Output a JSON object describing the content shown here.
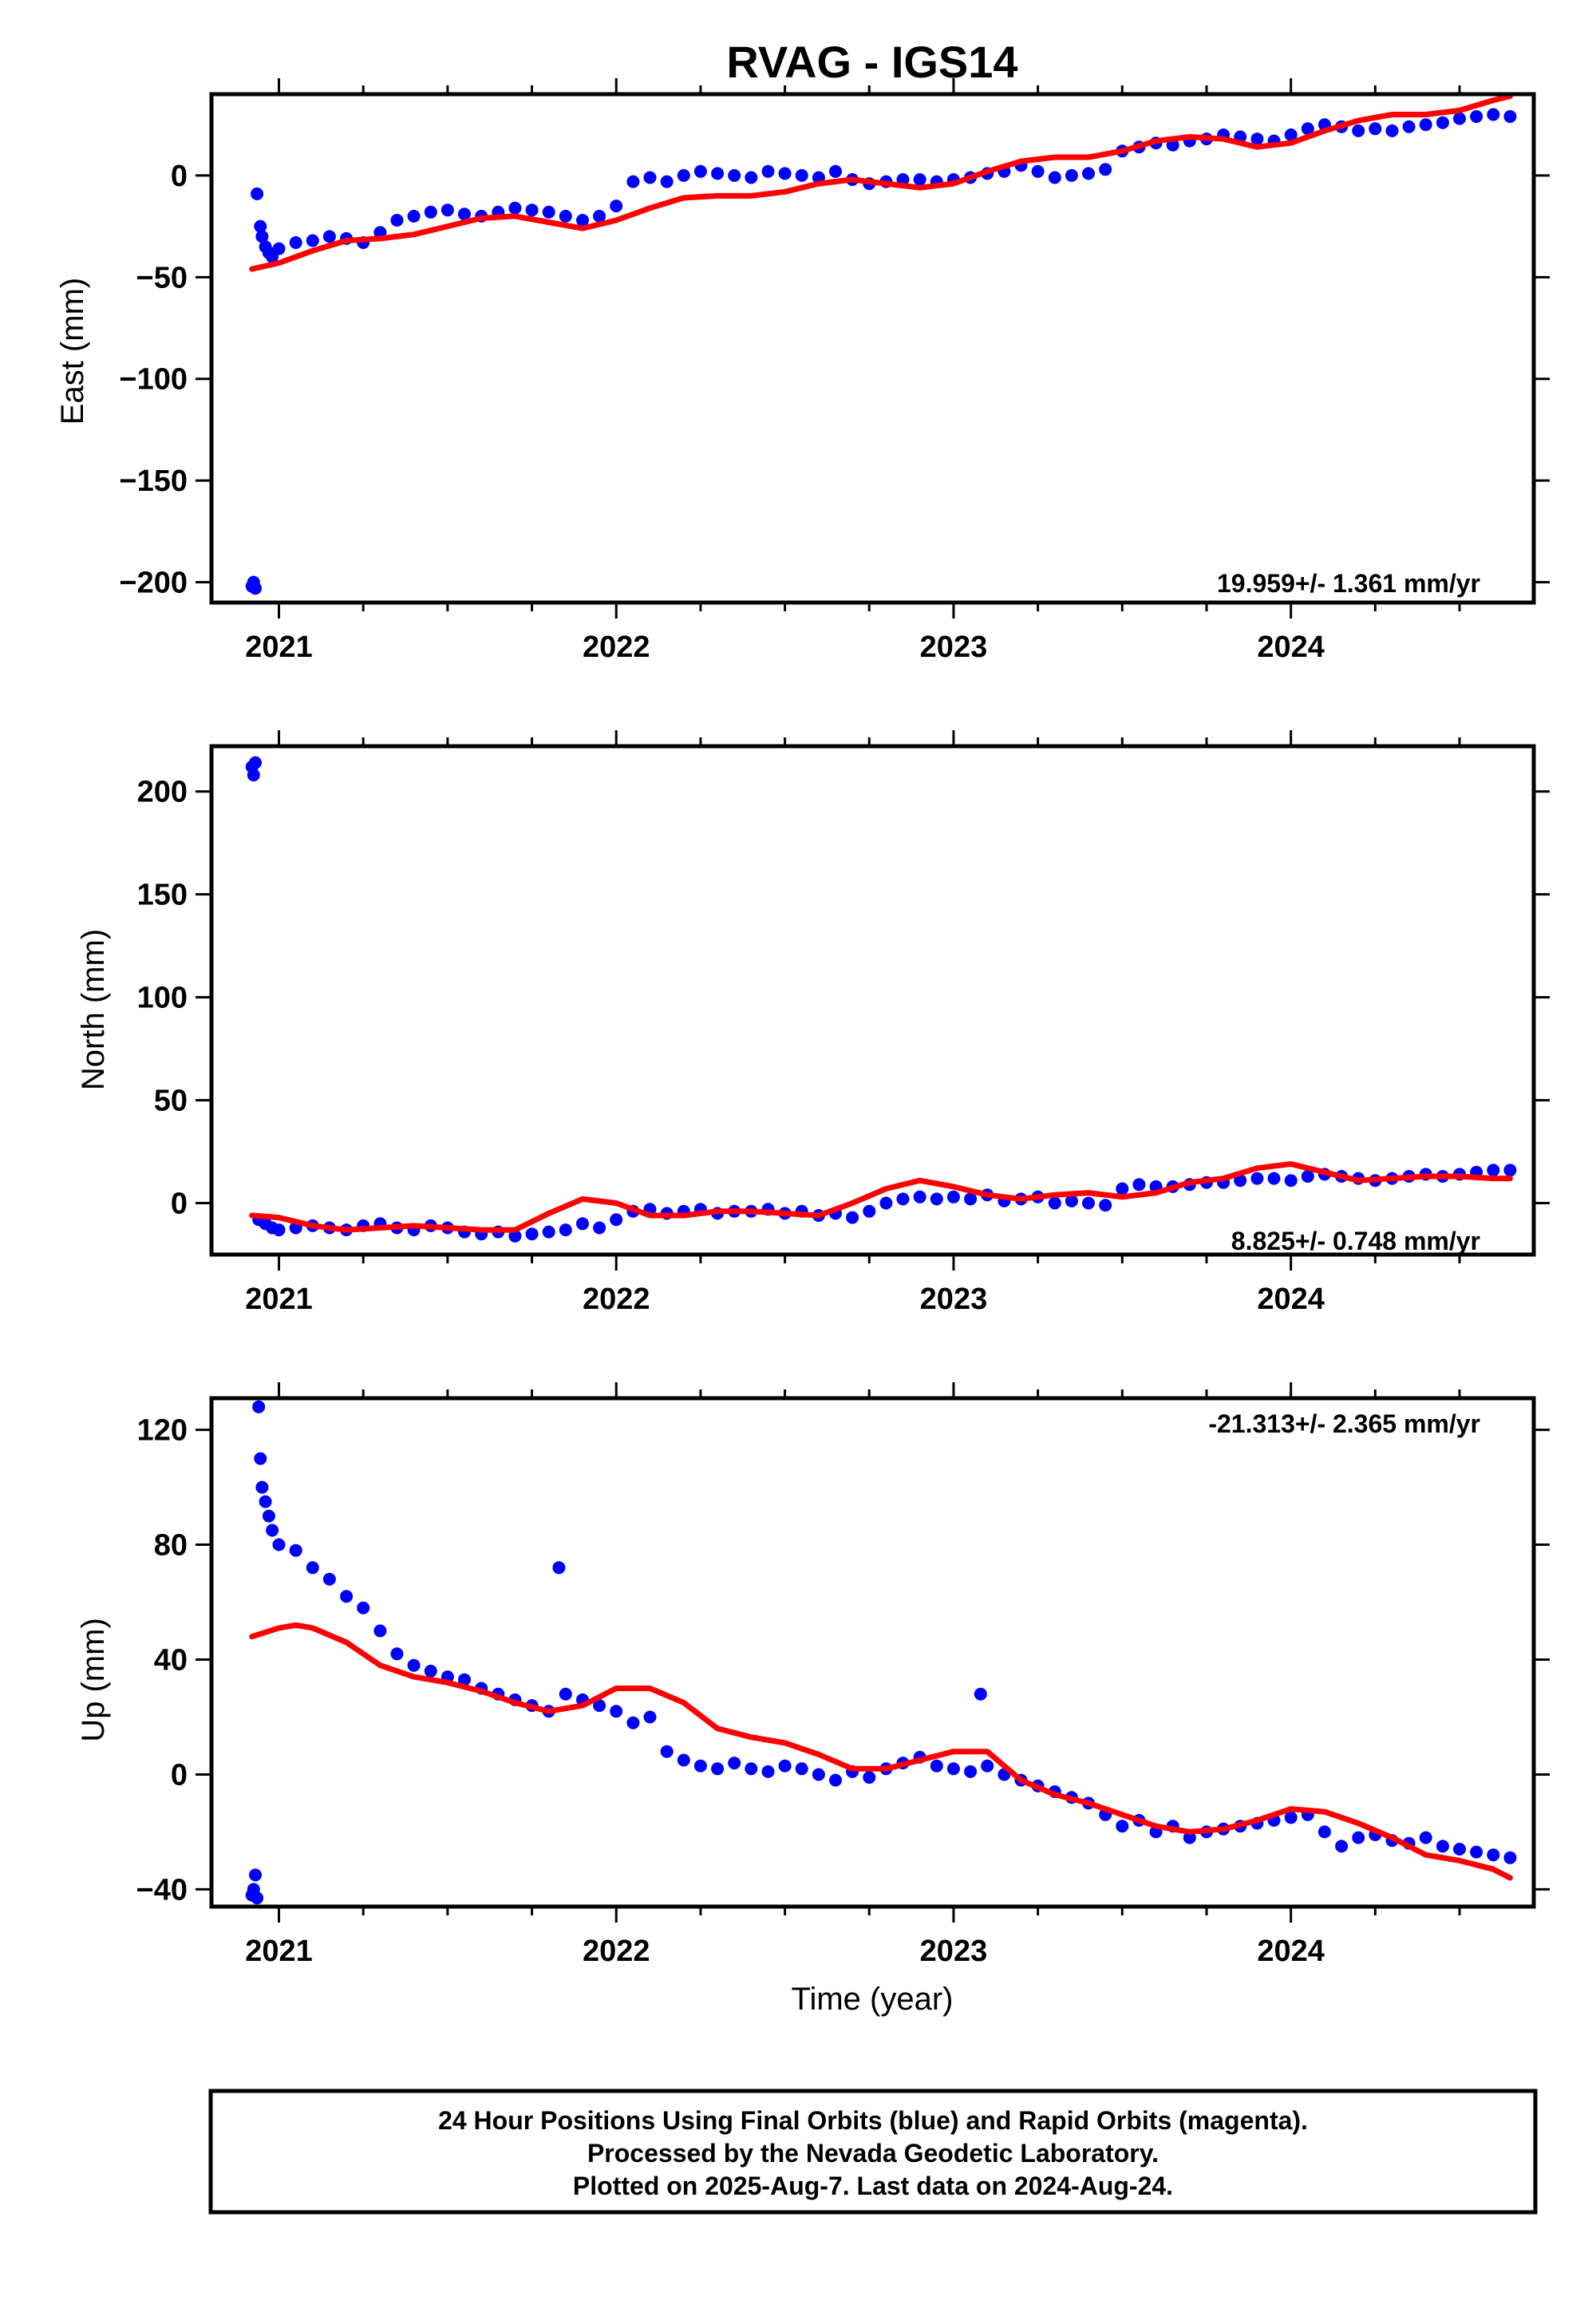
{
  "title": "RVAG - IGS14",
  "colors": {
    "points": "#0000ff",
    "trend": "#ff0000",
    "frame": "#000000"
  },
  "chart_data": [
    {
      "type": "scatter",
      "key": "east",
      "ylabel": "East (mm)",
      "xlabel": "",
      "xlim": [
        2020.8,
        2024.72
      ],
      "ylim": [
        -210,
        40
      ],
      "xticks": [
        2021,
        2022,
        2023,
        2024
      ],
      "yticks": [
        0,
        -50,
        -100,
        -150,
        -200
      ],
      "rate_label": "19.959+/- 1.361 mm/yr",
      "series": [
        {
          "name": "",
          "kind": "points",
          "x": [
            2020.92,
            2020.925,
            2020.93,
            2020.935,
            2020.945,
            2020.95,
            2020.96,
            2020.97,
            2020.98,
            2021.0,
            2021.05,
            2021.1,
            2021.15,
            2021.2,
            2021.25,
            2021.3,
            2021.35,
            2021.4,
            2021.45,
            2021.5,
            2021.55,
            2021.6,
            2021.65,
            2021.7,
            2021.75,
            2021.8,
            2021.85,
            2021.9,
            2021.95,
            2022.0,
            2022.05,
            2022.1,
            2022.15,
            2022.2,
            2022.25,
            2022.3,
            2022.35,
            2022.4,
            2022.45,
            2022.5,
            2022.55,
            2022.6,
            2022.65,
            2022.7,
            2022.75,
            2022.8,
            2022.85,
            2022.9,
            2022.95,
            2023.0,
            2023.05,
            2023.1,
            2023.15,
            2023.2,
            2023.25,
            2023.3,
            2023.35,
            2023.4,
            2023.45,
            2023.5,
            2023.55,
            2023.6,
            2023.65,
            2023.7,
            2023.75,
            2023.8,
            2023.85,
            2023.9,
            2023.95,
            2024.0,
            2024.05,
            2024.1,
            2024.15,
            2024.2,
            2024.25,
            2024.3,
            2024.35,
            2024.4,
            2024.45,
            2024.5,
            2024.55,
            2024.6,
            2024.65
          ],
          "y": [
            -202,
            -200,
            -203,
            -9,
            -25,
            -30,
            -35,
            -38,
            -40,
            -36,
            -33,
            -32,
            -30,
            -31,
            -33,
            -28,
            -22,
            -20,
            -18,
            -17,
            -19,
            -20,
            -18,
            -16,
            -17,
            -18,
            -20,
            -22,
            -20,
            -15,
            -3,
            -1,
            -3,
            0,
            2,
            1,
            0,
            -1,
            2,
            1,
            0,
            -1,
            2,
            -2,
            -4,
            -3,
            -2,
            -2,
            -3,
            -2,
            -1,
            1,
            2,
            5,
            2,
            -1,
            0,
            1,
            3,
            12,
            14,
            16,
            15,
            17,
            18,
            20,
            19,
            18,
            17,
            20,
            23,
            25,
            24,
            22,
            23,
            22,
            24,
            25,
            26,
            28,
            29,
            30,
            29
          ]
        },
        {
          "name": "",
          "kind": "trend",
          "x": [
            2020.92,
            2021.0,
            2021.1,
            2021.2,
            2021.3,
            2021.4,
            2021.5,
            2021.6,
            2021.7,
            2021.8,
            2021.9,
            2022.0,
            2022.1,
            2022.2,
            2022.3,
            2022.4,
            2022.5,
            2022.6,
            2022.7,
            2022.8,
            2022.9,
            2023.0,
            2023.1,
            2023.2,
            2023.3,
            2023.4,
            2023.5,
            2023.6,
            2023.7,
            2023.8,
            2023.9,
            2024.0,
            2024.1,
            2024.2,
            2024.3,
            2024.4,
            2024.5,
            2024.6,
            2024.65
          ],
          "y": [
            -46,
            -43,
            -37,
            -32,
            -31,
            -29,
            -25,
            -21,
            -20,
            -23,
            -26,
            -22,
            -16,
            -11,
            -10,
            -10,
            -8,
            -4,
            -2,
            -4,
            -6,
            -4,
            2,
            7,
            9,
            9,
            12,
            17,
            19,
            18,
            14,
            16,
            22,
            27,
            30,
            30,
            32,
            37,
            39
          ]
        }
      ]
    },
    {
      "type": "scatter",
      "key": "north",
      "ylabel": "North (mm)",
      "xlabel": "",
      "xlim": [
        2020.8,
        2024.72
      ],
      "ylim": [
        -25,
        222
      ],
      "xticks": [
        2021,
        2022,
        2023,
        2024
      ],
      "yticks": [
        200,
        150,
        100,
        50,
        0
      ],
      "rate_label": "8.825+/- 0.748 mm/yr",
      "series": [
        {
          "name": "",
          "kind": "points",
          "x": [
            2020.92,
            2020.925,
            2020.93,
            2020.94,
            2020.96,
            2020.98,
            2021.0,
            2021.05,
            2021.1,
            2021.15,
            2021.2,
            2021.25,
            2021.3,
            2021.35,
            2021.4,
            2021.45,
            2021.5,
            2021.55,
            2021.6,
            2021.65,
            2021.7,
            2021.75,
            2021.8,
            2021.85,
            2021.9,
            2021.95,
            2022.0,
            2022.05,
            2022.1,
            2022.15,
            2022.2,
            2022.25,
            2022.3,
            2022.35,
            2022.4,
            2022.45,
            2022.5,
            2022.55,
            2022.6,
            2022.65,
            2022.7,
            2022.75,
            2022.8,
            2022.85,
            2022.9,
            2022.95,
            2023.0,
            2023.05,
            2023.1,
            2023.15,
            2023.2,
            2023.25,
            2023.3,
            2023.35,
            2023.4,
            2023.45,
            2023.5,
            2023.55,
            2023.6,
            2023.65,
            2023.7,
            2023.75,
            2023.8,
            2023.85,
            2023.9,
            2023.95,
            2024.0,
            2024.05,
            2024.1,
            2024.15,
            2024.2,
            2024.25,
            2024.3,
            2024.35,
            2024.4,
            2024.45,
            2024.5,
            2024.55,
            2024.6,
            2024.65
          ],
          "y": [
            212,
            208,
            214,
            -8,
            -10,
            -12,
            -13,
            -12,
            -11,
            -12,
            -13,
            -11,
            -10,
            -12,
            -13,
            -11,
            -12,
            -14,
            -15,
            -14,
            -16,
            -15,
            -14,
            -13,
            -10,
            -12,
            -8,
            -4,
            -3,
            -5,
            -4,
            -3,
            -5,
            -4,
            -4,
            -3,
            -5,
            -4,
            -6,
            -5,
            -7,
            -4,
            0,
            2,
            3,
            2,
            3,
            2,
            4,
            1,
            2,
            3,
            0,
            1,
            0,
            -1,
            7,
            9,
            8,
            8,
            9,
            10,
            10,
            11,
            12,
            12,
            11,
            13,
            14,
            13,
            12,
            11,
            12,
            13,
            14,
            13,
            14,
            15,
            16,
            16
          ]
        },
        {
          "name": "",
          "kind": "trend",
          "x": [
            2020.92,
            2021.0,
            2021.1,
            2021.2,
            2021.3,
            2021.4,
            2021.5,
            2021.6,
            2021.7,
            2021.8,
            2021.9,
            2022.0,
            2022.1,
            2022.2,
            2022.3,
            2022.4,
            2022.5,
            2022.6,
            2022.7,
            2022.8,
            2022.9,
            2023.0,
            2023.1,
            2023.2,
            2023.3,
            2023.4,
            2023.5,
            2023.6,
            2023.7,
            2023.8,
            2023.9,
            2024.0,
            2024.1,
            2024.2,
            2024.3,
            2024.4,
            2024.5,
            2024.6,
            2024.65
          ],
          "y": [
            -6,
            -7,
            -11,
            -13,
            -12,
            -11,
            -12,
            -13,
            -13,
            -5,
            2,
            0,
            -6,
            -6,
            -4,
            -4,
            -5,
            -6,
            0,
            7,
            11,
            8,
            4,
            2,
            4,
            5,
            3,
            5,
            10,
            12,
            17,
            19,
            15,
            11,
            12,
            13,
            13,
            12,
            12
          ]
        }
      ]
    },
    {
      "type": "scatter",
      "key": "up",
      "ylabel": "Up (mm)",
      "xlabel": "Time (year)",
      "xlim": [
        2020.8,
        2024.72
      ],
      "ylim": [
        -46,
        131
      ],
      "xticks": [
        2021,
        2022,
        2023,
        2024
      ],
      "yticks": [
        120,
        80,
        40,
        0,
        -40
      ],
      "rate_label": "-21.313+/- 2.365 mm/yr",
      "series": [
        {
          "name": "",
          "kind": "points",
          "x": [
            2020.92,
            2020.925,
            2020.93,
            2020.935,
            2020.94,
            2020.945,
            2020.95,
            2020.96,
            2020.97,
            2020.98,
            2021.0,
            2021.05,
            2021.1,
            2021.15,
            2021.2,
            2021.25,
            2021.3,
            2021.35,
            2021.4,
            2021.45,
            2021.5,
            2021.55,
            2021.6,
            2021.65,
            2021.7,
            2021.75,
            2021.8,
            2021.83,
            2021.85,
            2021.9,
            2021.95,
            2022.0,
            2022.05,
            2022.1,
            2022.15,
            2022.2,
            2022.25,
            2022.3,
            2022.35,
            2022.4,
            2022.45,
            2022.5,
            2022.55,
            2022.6,
            2022.65,
            2022.7,
            2022.75,
            2022.8,
            2022.85,
            2022.9,
            2022.95,
            2023.0,
            2023.05,
            2023.08,
            2023.1,
            2023.15,
            2023.2,
            2023.25,
            2023.3,
            2023.35,
            2023.4,
            2023.45,
            2023.5,
            2023.55,
            2023.6,
            2023.65,
            2023.7,
            2023.75,
            2023.8,
            2023.85,
            2023.9,
            2023.95,
            2024.0,
            2024.05,
            2024.1,
            2024.15,
            2024.2,
            2024.25,
            2024.3,
            2024.35,
            2024.4,
            2024.45,
            2024.5,
            2024.55,
            2024.6,
            2024.65
          ],
          "y": [
            -42,
            -40,
            -35,
            -43,
            128,
            110,
            100,
            95,
            90,
            85,
            80,
            78,
            72,
            68,
            62,
            58,
            50,
            42,
            38,
            36,
            34,
            33,
            30,
            28,
            26,
            24,
            22,
            72,
            28,
            26,
            24,
            22,
            18,
            20,
            8,
            5,
            3,
            2,
            4,
            2,
            1,
            3,
            2,
            0,
            -2,
            1,
            -1,
            2,
            4,
            6,
            3,
            2,
            1,
            28,
            3,
            0,
            -2,
            -4,
            -6,
            -8,
            -10,
            -14,
            -18,
            -16,
            -20,
            -18,
            -22,
            -20,
            -19,
            -18,
            -17,
            -16,
            -15,
            -14,
            -20,
            -25,
            -22,
            -21,
            -23,
            -24,
            -22,
            -25,
            -26,
            -27,
            -28,
            -29
          ]
        },
        {
          "name": "",
          "kind": "trend",
          "x": [
            2020.92,
            2021.0,
            2021.05,
            2021.1,
            2021.2,
            2021.3,
            2021.4,
            2021.5,
            2021.6,
            2021.7,
            2021.8,
            2021.9,
            2022.0,
            2022.1,
            2022.2,
            2022.3,
            2022.4,
            2022.5,
            2022.6,
            2022.7,
            2022.8,
            2022.9,
            2023.0,
            2023.1,
            2023.2,
            2023.3,
            2023.4,
            2023.5,
            2023.6,
            2023.7,
            2023.8,
            2023.9,
            2024.0,
            2024.1,
            2024.2,
            2024.3,
            2024.4,
            2024.5,
            2024.6,
            2024.65
          ],
          "y": [
            48,
            51,
            52,
            51,
            46,
            38,
            34,
            32,
            29,
            25,
            22,
            24,
            30,
            30,
            25,
            16,
            13,
            11,
            7,
            2,
            2,
            5,
            8,
            8,
            -2,
            -7,
            -10,
            -14,
            -18,
            -20,
            -19,
            -16,
            -12,
            -13,
            -17,
            -22,
            -28,
            -30,
            -33,
            -36
          ]
        }
      ]
    }
  ],
  "footer": {
    "line1": "24 Hour Positions Using Final Orbits (blue) and Rapid Orbits (magenta).",
    "line2": "Processed by the Nevada Geodetic Laboratory.",
    "line3": "Plotted on 2025-Aug-7. Last data on 2024-Aug-24."
  }
}
